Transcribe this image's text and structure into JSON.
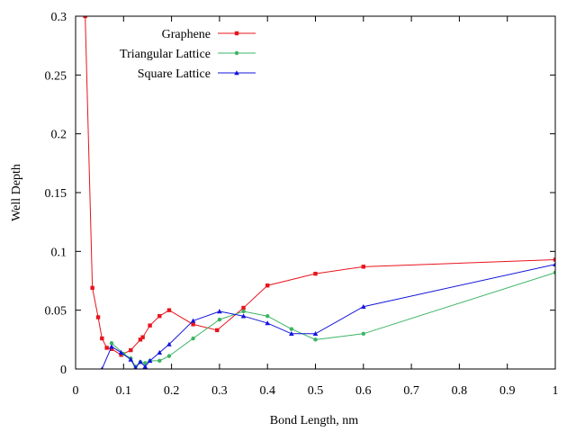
{
  "chart_data": {
    "type": "line",
    "xlabel": "Bond Length, nm",
    "ylabel": "Well Depth",
    "xlim": [
      0,
      1
    ],
    "ylim": [
      0,
      0.3
    ],
    "x_ticks": [
      "0",
      "0.1",
      "0.2",
      "0.3",
      "0.4",
      "0.5",
      "0.6",
      "0.7",
      "0.8",
      "0.9",
      "1"
    ],
    "y_ticks": [
      "0",
      "0.05",
      "0.1",
      "0.15",
      "0.2",
      "0.25",
      "0.3"
    ],
    "grid": false,
    "legend_position": "top-left",
    "series": [
      {
        "name": "Graphene",
        "color": "#e8141c",
        "marker": "square",
        "x": [
          0.02,
          0.035,
          0.047,
          0.055,
          0.065,
          0.075,
          0.095,
          0.115,
          0.135,
          0.14,
          0.155,
          0.175,
          0.195,
          0.245,
          0.295,
          0.35,
          0.4,
          0.5,
          0.6,
          1.0
        ],
        "y": [
          0.3,
          0.069,
          0.044,
          0.026,
          0.018,
          0.017,
          0.012,
          0.016,
          0.025,
          0.027,
          0.037,
          0.045,
          0.05,
          0.038,
          0.033,
          0.052,
          0.071,
          0.081,
          0.087,
          0.093
        ]
      },
      {
        "name": "Triangular Lattice",
        "color": "#3cb464",
        "marker": "circle",
        "x": [
          0.075,
          0.1,
          0.115,
          0.125,
          0.135,
          0.145,
          0.155,
          0.175,
          0.195,
          0.245,
          0.3,
          0.35,
          0.4,
          0.45,
          0.5,
          0.6,
          1.0
        ],
        "y": [
          0.022,
          0.013,
          0.009,
          0.002,
          0.006,
          0.005,
          0.007,
          0.007,
          0.011,
          0.026,
          0.042,
          0.049,
          0.045,
          0.034,
          0.025,
          0.03,
          0.082
        ]
      },
      {
        "name": "Square Lattice",
        "color": "#1414dc",
        "marker": "triangle",
        "x": [
          0.055,
          0.075,
          0.095,
          0.115,
          0.125,
          0.135,
          0.145,
          0.155,
          0.175,
          0.195,
          0.245,
          0.3,
          0.35,
          0.4,
          0.45,
          0.5,
          0.6,
          1.0
        ],
        "y": [
          0.0,
          0.019,
          0.014,
          0.008,
          0.001,
          0.006,
          0.002,
          0.007,
          0.014,
          0.021,
          0.041,
          0.049,
          0.045,
          0.039,
          0.03,
          0.03,
          0.053,
          0.089
        ]
      }
    ]
  }
}
